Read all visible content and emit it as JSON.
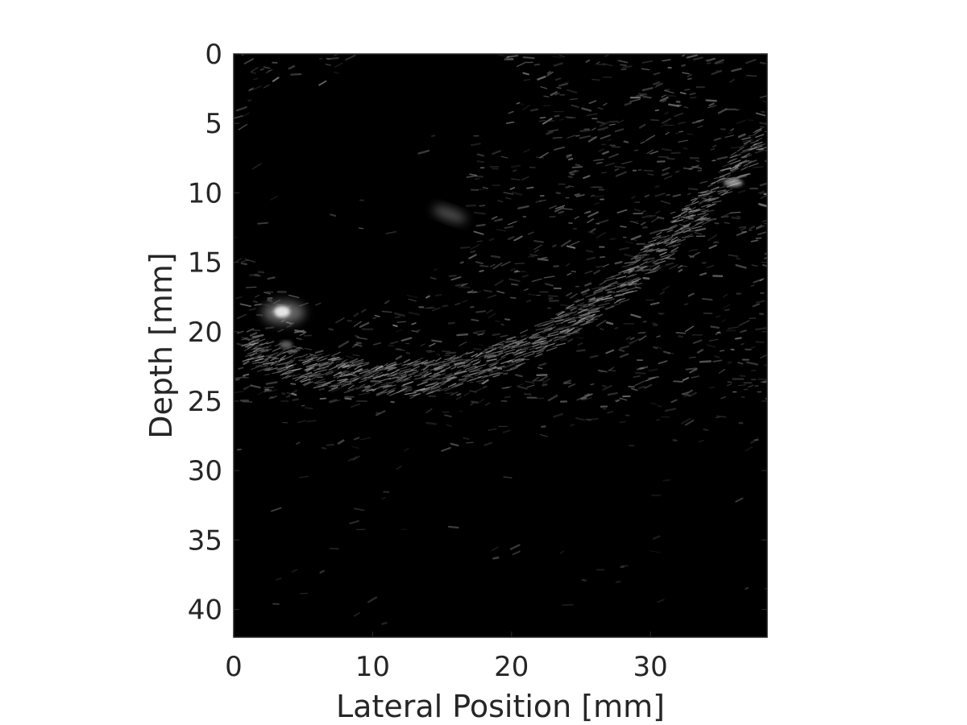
{
  "figure": {
    "xlabel": "Lateral Position [mm]",
    "ylabel": "Depth [mm]",
    "xlim": [
      0,
      38.4
    ],
    "ylim": [
      0,
      42
    ],
    "y_reversed": true,
    "xticks": [
      {
        "value": 0,
        "label": "0"
      },
      {
        "value": 10,
        "label": "10"
      },
      {
        "value": 20,
        "label": "20"
      },
      {
        "value": 30,
        "label": "30"
      }
    ],
    "yticks": [
      {
        "value": 0,
        "label": "0"
      },
      {
        "value": 5,
        "label": "5"
      },
      {
        "value": 10,
        "label": "10"
      },
      {
        "value": 15,
        "label": "15"
      },
      {
        "value": 20,
        "label": "20"
      },
      {
        "value": 25,
        "label": "25"
      },
      {
        "value": 30,
        "label": "30"
      },
      {
        "value": 35,
        "label": "35"
      },
      {
        "value": 40,
        "label": "40"
      }
    ],
    "image": {
      "kind": "B-mode ultrasound",
      "colormap": "gray",
      "background_color": "#000000"
    },
    "colors": {
      "axis": "#262626",
      "tick": "#262626"
    }
  }
}
